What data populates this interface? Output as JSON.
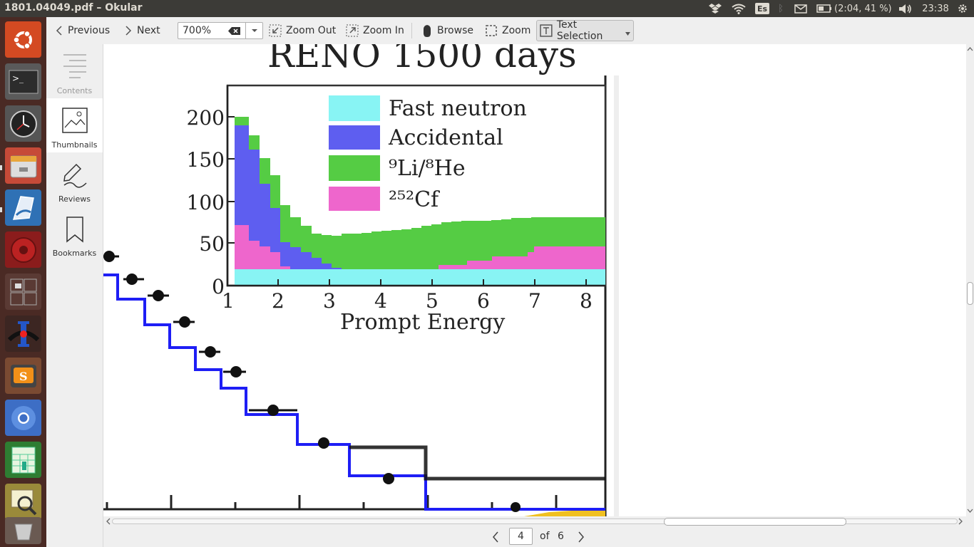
{
  "window": {
    "title": "1801.04049.pdf – Okular"
  },
  "tray": {
    "keyboard_layout": "Es",
    "battery": "(2:04, 41 %)",
    "clock": "23:38"
  },
  "toolbar": {
    "previous": "Previous",
    "next": "Next",
    "zoom_value": "700%",
    "zoom_out": "Zoom Out",
    "zoom_in": "Zoom In",
    "browse": "Browse",
    "zoom": "Zoom",
    "text_selection": "Text Selection"
  },
  "sidebar": {
    "contents": "Contents",
    "thumbnails": "Thumbnails",
    "reviews": "Reviews",
    "bookmarks": "Bookmarks"
  },
  "pager": {
    "current_page": "4",
    "of_label": "of",
    "total_pages": "6"
  },
  "document": {
    "heading": "RENO 1500 days",
    "legend": [
      {
        "label": "Fast neutron",
        "color": "#88f4f4"
      },
      {
        "label": "Accidental",
        "color": "#5e5ef0"
      },
      {
        "label": "⁹Li/⁸He",
        "color": "#55cc44"
      },
      {
        "label": "²⁵²Cf",
        "color": "#ee66cc"
      }
    ],
    "inset_xlabel": "Prompt Energy",
    "inset_x_ticks": [
      "1",
      "2",
      "3",
      "4",
      "5",
      "6",
      "7",
      "8"
    ],
    "inset_y_ticks": [
      "0",
      "50",
      "100",
      "150",
      "200"
    ]
  },
  "colors": {
    "launcher_bg": "#4a2a24",
    "topbar_bg": "#3c3b37",
    "panel_bg": "#efefef",
    "blue_hist": "#1e1ef5"
  }
}
